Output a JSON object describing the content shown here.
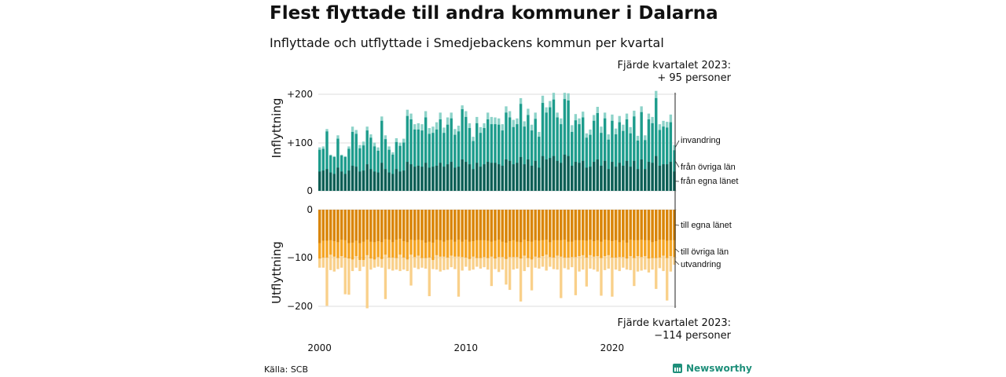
{
  "header": {
    "title": "Flest flyttade till andra kommuner i Dalarna",
    "subtitle": "Inflyttade och utflyttade i Smedjebackens kommun per kvartal"
  },
  "notes": {
    "top_line1": "Fjärde kvartalet 2023:",
    "top_line2": "+ 95 personer",
    "bottom_line1": "Fjärde kvartalet 2023:",
    "bottom_line2": "−114 personer"
  },
  "footer": {
    "source": "Källa: SCB",
    "brand": "Newsworthy"
  },
  "chart_data": {
    "type": "bar",
    "stacked": true,
    "x_start": "2000 Q1",
    "x_end": "2023 Q4",
    "x_ticks": [
      "2000",
      "2010",
      "2020"
    ],
    "colors": {
      "in_county": "#0e5e55",
      "in_other": "#1d9c8c",
      "in_immig": "#8dd3c9",
      "out_county": "#d98508",
      "out_other": "#f4a423",
      "out_emig": "#f9d08a"
    },
    "panels": [
      {
        "axis_label": "Inflyttning",
        "ylim": [
          0,
          200
        ],
        "y_ticks": [
          "0",
          "+100",
          "+200"
        ],
        "segment_labels": [
          "från egna länet",
          "från övriga län",
          "invandring"
        ],
        "totals": [
          90,
          92,
          128,
          75,
          72,
          115,
          75,
          72,
          92,
          133,
          126,
          95,
          102,
          133,
          117,
          100,
          90,
          154,
          115,
          92,
          80,
          109,
          100,
          108,
          168,
          160,
          138,
          140,
          138,
          165,
          130,
          133,
          142,
          162,
          131,
          152,
          162,
          128,
          135,
          177,
          165,
          140,
          112,
          153,
          132,
          140,
          162,
          153,
          152,
          150,
          138,
          175,
          165,
          147,
          150,
          192,
          144,
          170,
          137,
          162,
          122,
          197,
          173,
          186,
          203,
          162,
          150,
          203,
          202,
          136,
          159,
          150,
          164,
          119,
          127,
          157,
          174,
          133,
          162,
          117,
          158,
          129,
          155,
          137,
          160,
          132,
          166,
          114,
          175,
          115,
          160,
          153,
          207,
          138,
          145,
          143,
          158,
          95
        ],
        "in_county": [
          40,
          42,
          45,
          38,
          35,
          48,
          40,
          35,
          42,
          52,
          50,
          40,
          42,
          55,
          45,
          40,
          38,
          58,
          45,
          38,
          35,
          45,
          40,
          42,
          60,
          55,
          50,
          52,
          50,
          58,
          48,
          50,
          52,
          58,
          50,
          55,
          60,
          48,
          50,
          65,
          60,
          55,
          45,
          58,
          50,
          55,
          60,
          58,
          58,
          55,
          52,
          65,
          62,
          55,
          58,
          70,
          55,
          65,
          52,
          62,
          48,
          72,
          65,
          68,
          72,
          62,
          58,
          75,
          72,
          52,
          60,
          58,
          62,
          48,
          50,
          60,
          65,
          52,
          62,
          45,
          60,
          50,
          58,
          52,
          62,
          50,
          62,
          45,
          65,
          45,
          60,
          58,
          72,
          52,
          55,
          55,
          60,
          40
        ],
        "in_other": [
          45,
          45,
          78,
          35,
          35,
          60,
          33,
          35,
          45,
          70,
          68,
          48,
          52,
          70,
          65,
          52,
          45,
          87,
          62,
          47,
          40,
          56,
          53,
          58,
          95,
          93,
          77,
          75,
          75,
          94,
          70,
          70,
          75,
          90,
          70,
          82,
          90,
          68,
          73,
          104,
          93,
          75,
          58,
          82,
          70,
          75,
          88,
          80,
          80,
          82,
          73,
          97,
          90,
          77,
          80,
          110,
          78,
          92,
          73,
          87,
          64,
          110,
          97,
          105,
          117,
          90,
          80,
          115,
          115,
          70,
          86,
          80,
          90,
          62,
          66,
          85,
          96,
          68,
          88,
          61,
          85,
          67,
          84,
          72,
          86,
          69,
          92,
          59,
          98,
          60,
          88,
          82,
          120,
          74,
          78,
          76,
          82,
          44
        ],
        "out_county": [
          69,
          64,
          64,
          63,
          65,
          67,
          62,
          63,
          69,
          68,
          64,
          69,
          66,
          62,
          66,
          67,
          65,
          67,
          61,
          62,
          67,
          62,
          60,
          65,
          67,
          62,
          63,
          62,
          63,
          68,
          66,
          68,
          62,
          63,
          66,
          63,
          62,
          66,
          62,
          66,
          62,
          66,
          65,
          63,
          63,
          63,
          64,
          66,
          64,
          62,
          66,
          68,
          65,
          63,
          66,
          67,
          62,
          65,
          66,
          63,
          64,
          63,
          62,
          67,
          63,
          63,
          63,
          62,
          66,
          66,
          63,
          63,
          63,
          64,
          62,
          65,
          63,
          66,
          62,
          63,
          65,
          63,
          67,
          63,
          68,
          62,
          63,
          63,
          62,
          63,
          63,
          67,
          65,
          62,
          62,
          64,
          63,
          63
        ],
        "out_other": [
          32,
          35,
          35,
          30,
          32,
          33,
          34,
          36,
          32,
          35,
          32,
          35,
          38,
          32,
          35,
          36,
          33,
          35,
          32,
          37,
          32,
          38,
          33,
          34,
          36,
          31,
          35,
          33,
          37,
          32,
          33,
          36,
          32,
          34,
          31,
          36,
          33,
          31,
          35,
          32,
          37,
          36,
          32,
          37,
          37,
          35,
          36,
          31,
          37,
          36,
          32,
          34,
          33,
          35,
          32,
          34,
          33,
          35,
          37,
          34,
          35,
          33,
          31,
          31,
          36,
          32,
          34,
          37,
          33,
          32,
          35,
          33,
          31,
          35,
          32,
          32,
          33,
          34,
          34,
          31,
          34,
          36,
          31,
          35,
          33,
          34,
          37,
          33,
          36,
          33,
          38,
          33,
          35,
          37,
          33,
          36,
          33,
          35
        ],
        "totals_out": [
          120,
          120,
          199,
          125,
          128,
          123,
          120,
          175,
          176,
          127,
          120,
          127,
          118,
          204,
          124,
          120,
          118,
          120,
          185,
          123,
          126,
          124,
          127,
          124,
          127,
          157,
          120,
          123,
          120,
          122,
          179,
          123,
          124,
          128,
          125,
          124,
          119,
          123,
          180,
          126,
          118,
          126,
          124,
          118,
          122,
          119,
          124,
          158,
          123,
          129,
          124,
          155,
          166,
          124,
          122,
          190,
          127,
          119,
          167,
          120,
          122,
          118,
          126,
          118,
          123,
          124,
          183,
          121,
          124,
          119,
          177,
          128,
          124,
          159,
          122,
          124,
          128,
          178,
          125,
          122,
          180,
          124,
          127,
          120,
          124,
          125,
          158,
          128,
          126,
          124,
          130,
          124,
          164,
          121,
          127,
          188,
          128,
          114
        ]
      },
      {
        "axis_label": "Utflyttning",
        "ylim": [
          -200,
          0
        ],
        "y_ticks": [
          "0",
          "−100",
          "−200"
        ],
        "segment_labels": [
          "till egna länet",
          "till övriga län",
          "utvandring"
        ]
      }
    ]
  }
}
